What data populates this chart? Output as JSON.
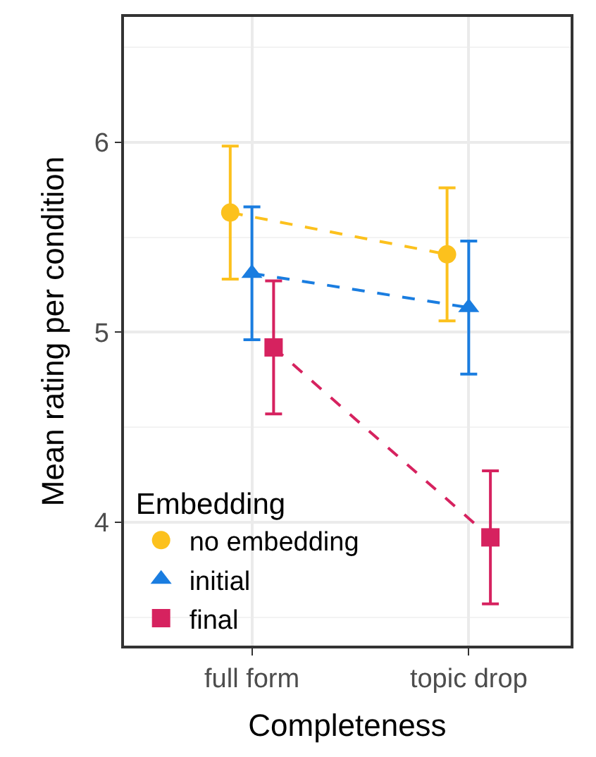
{
  "chart_data": {
    "type": "line",
    "xlabel": "Completeness",
    "ylabel": "Mean rating per condition",
    "legend_title": "Embedding",
    "categories": [
      "full form",
      "topic drop"
    ],
    "series": [
      {
        "name": "no embedding",
        "color": "#fcc11d",
        "marker": "circle",
        "values": [
          5.63,
          5.41
        ],
        "errors": [
          0.35,
          0.35
        ]
      },
      {
        "name": "initial",
        "color": "#1a7de0",
        "marker": "triangle",
        "values": [
          5.31,
          5.13
        ],
        "errors": [
          0.35,
          0.35
        ]
      },
      {
        "name": "final",
        "color": "#d6225f",
        "marker": "square",
        "values": [
          4.92,
          3.92
        ],
        "errors": [
          0.35,
          0.35
        ]
      }
    ],
    "ylim": [
      3.35,
      6.66
    ],
    "yticks": [
      4,
      5,
      6
    ],
    "grid": true,
    "legend": "bottom left",
    "line_style": "dashed"
  }
}
